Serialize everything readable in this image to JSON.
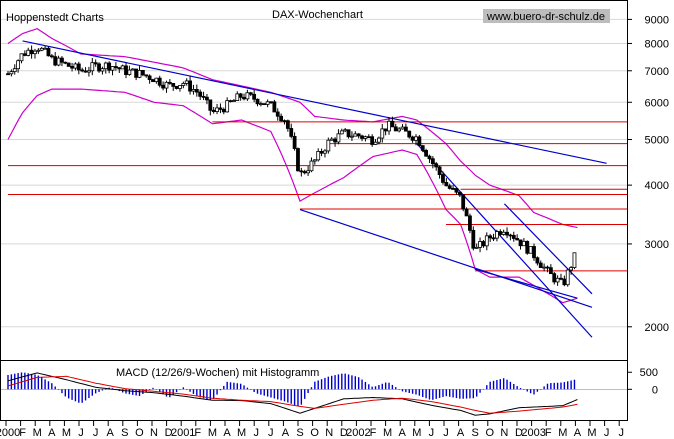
{
  "header": {
    "source": "Hoppenstedt Charts",
    "title": "DAX-Wochenchart",
    "website": "www.buero-dr-schulz.de"
  },
  "colors": {
    "candle": "#000000",
    "bollinger": "#cc00cc",
    "trendline": "#0000cc",
    "support": "#dd0000",
    "macd_hist": "#0000cc",
    "macd_line": "#000000",
    "macd_signal": "#dd0000"
  },
  "chart_data": [
    {
      "type": "candlestick",
      "title": "DAX-Wochenchart",
      "x_tick_labels": [
        "2000",
        "F",
        "M",
        "A",
        "M",
        "J",
        "J",
        "A",
        "S",
        "O",
        "N",
        "D",
        "2001",
        "F",
        "M",
        "A",
        "M",
        "J",
        "J",
        "A",
        "S",
        "O",
        "N",
        "D",
        "2002",
        "F",
        "M",
        "A",
        "M",
        "J",
        "J",
        "A",
        "S",
        "O",
        "N",
        "D",
        "2003",
        "F",
        "M",
        "A",
        "M",
        "J",
        "J"
      ],
      "x_tick_months": [
        "2000-01",
        "2000-02",
        "2000-03",
        "2000-04",
        "2000-05",
        "2000-06",
        "2000-07",
        "2000-08",
        "2000-09",
        "2000-10",
        "2000-11",
        "2000-12",
        "2001-01",
        "2001-02",
        "2001-03",
        "2001-04",
        "2001-05",
        "2001-06",
        "2001-07",
        "2001-08",
        "2001-09",
        "2001-10",
        "2001-11",
        "2001-12",
        "2002-01",
        "2002-02",
        "2002-03",
        "2002-04",
        "2002-05",
        "2002-06",
        "2002-07",
        "2002-08",
        "2002-09",
        "2002-10",
        "2002-11",
        "2002-12",
        "2003-01",
        "2003-02",
        "2003-03",
        "2003-04",
        "2003-05",
        "2003-06",
        "2003-07"
      ],
      "y_scale": "log",
      "y_ticks": [
        2000,
        3000,
        4000,
        5000,
        6000,
        7000,
        8000,
        9000
      ],
      "y_range": [
        1700,
        9800
      ],
      "close_keypoints": [
        [
          "2000-01",
          6900
        ],
        [
          "2000-02",
          7600
        ],
        [
          "2000-03",
          7900
        ],
        [
          "2000-04",
          7400
        ],
        [
          "2000-05",
          7200
        ],
        [
          "2000-06",
          7000
        ],
        [
          "2000-07",
          7150
        ],
        [
          "2000-08",
          7200
        ],
        [
          "2000-09",
          7000
        ],
        [
          "2000-10",
          6900
        ],
        [
          "2000-11",
          6750
        ],
        [
          "2000-12",
          6500
        ],
        [
          "2001-01",
          6600
        ],
        [
          "2001-02",
          6300
        ],
        [
          "2001-03",
          5700
        ],
        [
          "2001-04",
          5900
        ],
        [
          "2001-05",
          6200
        ],
        [
          "2001-06",
          6100
        ],
        [
          "2001-07",
          5900
        ],
        [
          "2001-08",
          5500
        ],
        [
          "2001-09",
          4200
        ],
        [
          "2001-10",
          4500
        ],
        [
          "2001-11",
          4950
        ],
        [
          "2001-12",
          5150
        ],
        [
          "2002-01",
          5100
        ],
        [
          "2002-02",
          5000
        ],
        [
          "2002-03",
          5350
        ],
        [
          "2002-04",
          5200
        ],
        [
          "2002-05",
          5050
        ],
        [
          "2002-06",
          4500
        ],
        [
          "2002-07",
          4000
        ],
        [
          "2002-08",
          3750
        ],
        [
          "2002-09",
          2900
        ],
        [
          "2002-10",
          3100
        ],
        [
          "2002-11",
          3250
        ],
        [
          "2002-12",
          3050
        ],
        [
          "2003-01",
          2850
        ],
        [
          "2003-02",
          2600
        ],
        [
          "2003-03",
          2450
        ],
        [
          "2003-04",
          2900
        ]
      ],
      "bollinger_upper_keypoints": [
        [
          "2000-01",
          8000
        ],
        [
          "2000-02",
          8400
        ],
        [
          "2000-03",
          8600
        ],
        [
          "2000-04",
          8200
        ],
        [
          "2000-06",
          7600
        ],
        [
          "2000-09",
          7500
        ],
        [
          "2000-11",
          7300
        ],
        [
          "2001-01",
          7100
        ],
        [
          "2001-03",
          6700
        ],
        [
          "2001-05",
          6500
        ],
        [
          "2001-07",
          6300
        ],
        [
          "2001-09",
          6000
        ],
        [
          "2001-10",
          5600
        ],
        [
          "2001-12",
          5500
        ],
        [
          "2002-02",
          5450
        ],
        [
          "2002-04",
          5600
        ],
        [
          "2002-05",
          5500
        ],
        [
          "2002-07",
          4900
        ],
        [
          "2002-08",
          4500
        ],
        [
          "2002-09",
          4200
        ],
        [
          "2002-10",
          4000
        ],
        [
          "2002-12",
          3800
        ],
        [
          "2003-01",
          3500
        ],
        [
          "2003-03",
          3300
        ],
        [
          "2003-04",
          3250
        ]
      ],
      "bollinger_lower_keypoints": [
        [
          "2000-01",
          5000
        ],
        [
          "2000-02",
          5700
        ],
        [
          "2000-03",
          6200
        ],
        [
          "2000-04",
          6400
        ],
        [
          "2000-06",
          6400
        ],
        [
          "2000-09",
          6300
        ],
        [
          "2000-11",
          6000
        ],
        [
          "2001-01",
          5900
        ],
        [
          "2001-03",
          5400
        ],
        [
          "2001-05",
          5500
        ],
        [
          "2001-07",
          5200
        ],
        [
          "2001-09",
          3700
        ],
        [
          "2001-10",
          3850
        ],
        [
          "2001-12",
          4150
        ],
        [
          "2002-02",
          4600
        ],
        [
          "2002-04",
          4750
        ],
        [
          "2002-05",
          4650
        ],
        [
          "2002-07",
          3550
        ],
        [
          "2002-08",
          3300
        ],
        [
          "2002-09",
          2650
        ],
        [
          "2002-10",
          2550
        ],
        [
          "2002-12",
          2550
        ],
        [
          "2003-01",
          2450
        ],
        [
          "2003-03",
          2250
        ],
        [
          "2003-04",
          2300
        ]
      ],
      "trendlines": [
        {
          "from": [
            "2000-02",
            8100
          ],
          "to": [
            "2003-06",
            4450
          ]
        },
        {
          "from": [
            "2001-09",
            3550
          ],
          "to": [
            "2003-05",
            2200
          ]
        },
        {
          "from": [
            "2002-09",
            2650
          ],
          "to": [
            "2003-04",
            2300
          ]
        },
        {
          "from": [
            "2002-05",
            4900
          ],
          "to": [
            "2003-05",
            1900
          ]
        },
        {
          "from": [
            "2002-11",
            3650
          ],
          "to": [
            "2003-05",
            2350
          ]
        }
      ],
      "support_lines": [
        {
          "level": 5450,
          "from": "2001-03"
        },
        {
          "level": 4900,
          "from": "2001-11"
        },
        {
          "level": 4400,
          "from": "2000-01"
        },
        {
          "level": 3920,
          "from": "2002-08"
        },
        {
          "level": 3820,
          "from": "2000-01"
        },
        {
          "level": 3560,
          "from": "2001-09"
        },
        {
          "level": 3300,
          "from": "2002-07"
        },
        {
          "level": 2630,
          "from": "2002-09"
        }
      ]
    },
    {
      "type": "bar",
      "title": "MACD (12/26/9-Wochen) mit Histogramm",
      "y_ticks": [
        500,
        0
      ],
      "y_range": [
        -900,
        800
      ],
      "histogram_keypoints": [
        [
          "2000-01",
          420
        ],
        [
          "2000-02",
          500
        ],
        [
          "2000-03",
          420
        ],
        [
          "2000-04",
          180
        ],
        [
          "2000-05",
          -240
        ],
        [
          "2000-06",
          -420
        ],
        [
          "2000-07",
          -120
        ],
        [
          "2000-08",
          60
        ],
        [
          "2000-09",
          -120
        ],
        [
          "2000-10",
          -200
        ],
        [
          "2000-11",
          60
        ],
        [
          "2000-12",
          -260
        ],
        [
          "2001-01",
          60
        ],
        [
          "2001-02",
          -220
        ],
        [
          "2001-03",
          -330
        ],
        [
          "2001-04",
          220
        ],
        [
          "2001-05",
          160
        ],
        [
          "2001-06",
          -120
        ],
        [
          "2001-07",
          -240
        ],
        [
          "2001-08",
          -360
        ],
        [
          "2001-09",
          -520
        ],
        [
          "2001-10",
          220
        ],
        [
          "2001-11",
          380
        ],
        [
          "2001-12",
          470
        ],
        [
          "2002-01",
          360
        ],
        [
          "2002-02",
          60
        ],
        [
          "2002-03",
          220
        ],
        [
          "2002-04",
          -60
        ],
        [
          "2002-05",
          -160
        ],
        [
          "2002-06",
          -320
        ],
        [
          "2002-07",
          -200
        ],
        [
          "2002-08",
          -280
        ],
        [
          "2002-09",
          -260
        ],
        [
          "2002-10",
          220
        ],
        [
          "2002-11",
          330
        ],
        [
          "2002-12",
          60
        ],
        [
          "2003-01",
          -160
        ],
        [
          "2003-02",
          180
        ],
        [
          "2003-03",
          200
        ],
        [
          "2003-04",
          300
        ]
      ],
      "macd_keypoints": [
        [
          "2000-01",
          250
        ],
        [
          "2000-03",
          480
        ],
        [
          "2000-05",
          280
        ],
        [
          "2000-07",
          60
        ],
        [
          "2000-09",
          -40
        ],
        [
          "2000-11",
          -100
        ],
        [
          "2001-01",
          -200
        ],
        [
          "2001-03",
          -320
        ],
        [
          "2001-05",
          -330
        ],
        [
          "2001-07",
          -420
        ],
        [
          "2001-09",
          -700
        ],
        [
          "2001-10",
          -560
        ],
        [
          "2001-12",
          -280
        ],
        [
          "2002-02",
          -240
        ],
        [
          "2002-04",
          -280
        ],
        [
          "2002-06",
          -470
        ],
        [
          "2002-08",
          -620
        ],
        [
          "2002-09",
          -760
        ],
        [
          "2002-10",
          -720
        ],
        [
          "2002-12",
          -540
        ],
        [
          "2003-02",
          -500
        ],
        [
          "2003-03",
          -480
        ],
        [
          "2003-04",
          -300
        ]
      ],
      "signal_keypoints": [
        [
          "2000-01",
          100
        ],
        [
          "2000-03",
          350
        ],
        [
          "2000-05",
          380
        ],
        [
          "2000-07",
          180
        ],
        [
          "2000-09",
          20
        ],
        [
          "2000-11",
          -60
        ],
        [
          "2001-01",
          -140
        ],
        [
          "2001-03",
          -260
        ],
        [
          "2001-05",
          -320
        ],
        [
          "2001-07",
          -360
        ],
        [
          "2001-09",
          -500
        ],
        [
          "2001-10",
          -560
        ],
        [
          "2001-12",
          -440
        ],
        [
          "2002-02",
          -320
        ],
        [
          "2002-04",
          -260
        ],
        [
          "2002-06",
          -360
        ],
        [
          "2002-08",
          -520
        ],
        [
          "2002-09",
          -620
        ],
        [
          "2002-10",
          -700
        ],
        [
          "2002-12",
          -640
        ],
        [
          "2003-02",
          -560
        ],
        [
          "2003-03",
          -520
        ],
        [
          "2003-04",
          -440
        ]
      ]
    }
  ]
}
